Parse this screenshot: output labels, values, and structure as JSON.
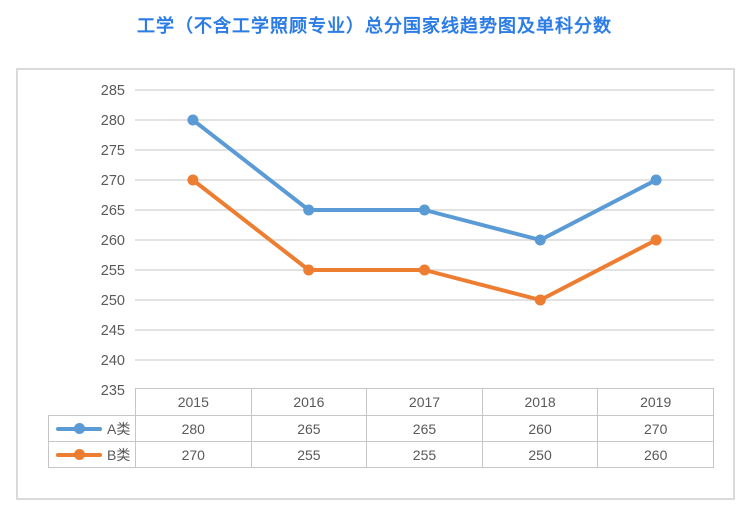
{
  "page": {
    "title": "工学（不含工学照顾专业）总分国家线趋势图及单科分数"
  },
  "colors": {
    "title_text": "#2c7ce5",
    "axis_text": "#595959",
    "table_text": "#595959",
    "gridline": "#d9d9d9",
    "panel_border": "#dadada",
    "table_border": "#c6c6c6",
    "series_a": "#5b9bd5",
    "series_b": "#ed7d31"
  },
  "chart_data": {
    "type": "line",
    "title": "工学（不含工学照顾专业）总分国家线趋势图及单科分数",
    "xlabel": "",
    "ylabel": "",
    "categories": [
      "2015",
      "2016",
      "2017",
      "2018",
      "2019"
    ],
    "series": [
      {
        "name": "A类",
        "values": [
          280,
          265,
          265,
          260,
          270
        ],
        "color": "#5b9bd5"
      },
      {
        "name": "B类",
        "values": [
          270,
          255,
          255,
          250,
          260
        ],
        "color": "#ed7d31"
      }
    ],
    "ylim": [
      235,
      285
    ],
    "ytick_step": 5,
    "yticks": [
      285,
      280,
      275,
      270,
      265,
      260,
      255,
      250,
      245,
      240,
      235
    ],
    "grid": true,
    "legend_position": "data-table-left",
    "data_table_shown": true
  }
}
